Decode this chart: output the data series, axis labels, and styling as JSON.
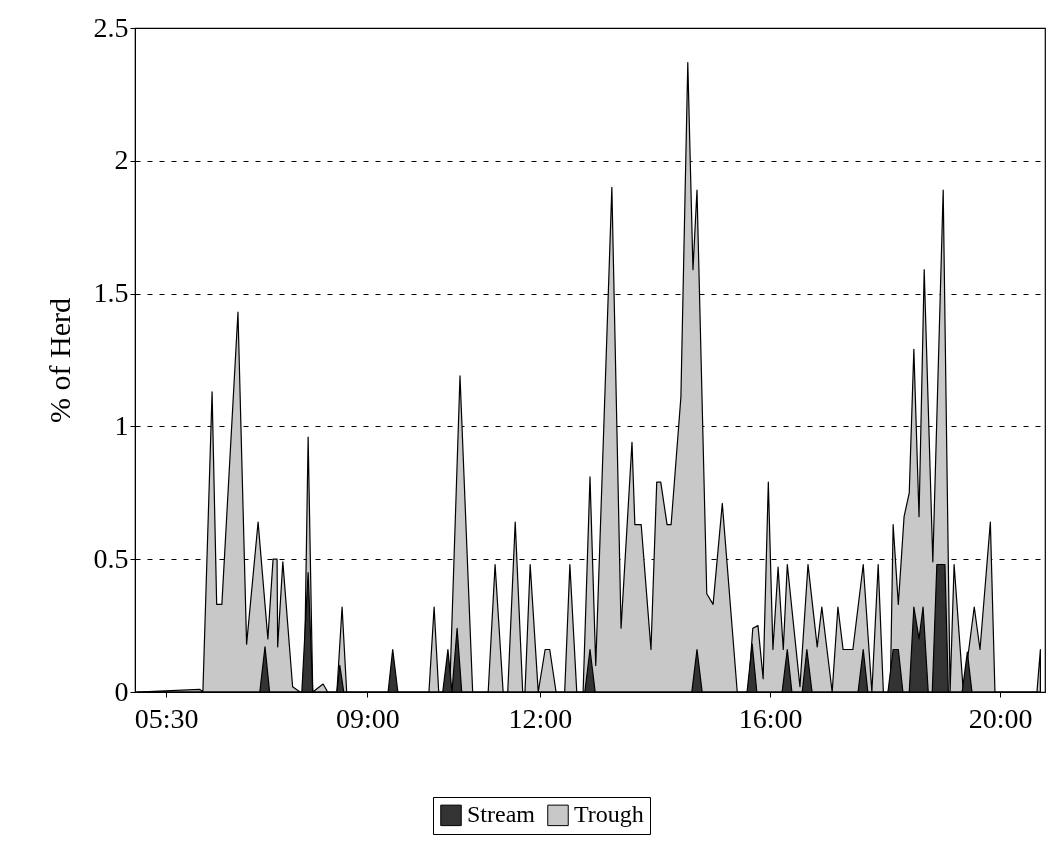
{
  "chart_data": {
    "type": "area",
    "ylabel": "% of Herd",
    "xlim": [
      4.96,
      20.78
    ],
    "xticks": [
      {
        "value": 5.5,
        "label": "05:30"
      },
      {
        "value": 9,
        "label": "09:00"
      },
      {
        "value": 12,
        "label": "12:00"
      },
      {
        "value": 16,
        "label": "16:00"
      },
      {
        "value": 20,
        "label": "20:00"
      }
    ],
    "ylim": [
      0,
      2.5
    ],
    "yticks": [
      0,
      0.5,
      1,
      1.5,
      2,
      2.5
    ],
    "grid": "y",
    "legend": "bottom",
    "series": [
      {
        "name": "Stream",
        "color": "#333333",
        "x": [
          4.99,
          7.13,
          7.22,
          7.3,
          7.86,
          7.97,
          8.05,
          8.47,
          8.52,
          8.59,
          9.36,
          9.44,
          9.53,
          10.31,
          10.4,
          10.47,
          10.56,
          10.64,
          12.78,
          12.87,
          12.96,
          14.64,
          14.73,
          14.82,
          15.6,
          15.69,
          15.77,
          16.21,
          16.3,
          16.38,
          16.56,
          16.64,
          16.73,
          17.53,
          17.62,
          17.7,
          18.05,
          18.14,
          18.23,
          18.31,
          18.42,
          18.5,
          18.59,
          18.66,
          18.75,
          18.82,
          18.9,
          19.04,
          19.1,
          19.34,
          19.43,
          19.51,
          20.7
        ],
        "values": [
          0,
          0,
          0.17,
          0,
          0,
          0.45,
          0,
          0,
          0.1,
          0,
          0,
          0.16,
          0,
          0,
          0.16,
          0,
          0.24,
          0,
          0,
          0.16,
          0,
          0,
          0.16,
          0,
          0,
          0.18,
          0,
          0,
          0.16,
          0,
          0,
          0.16,
          0,
          0,
          0.16,
          0,
          0,
          0.16,
          0.16,
          0,
          0,
          0.32,
          0.2,
          0.32,
          0,
          0,
          0.48,
          0.48,
          0,
          0,
          0.15,
          0,
          0
        ]
      },
      {
        "name": "Trough",
        "color": "#c8c8c8",
        "x": [
          4.99,
          6.09,
          6.14,
          6.3,
          6.38,
          6.47,
          6.75,
          6.9,
          7.1,
          7.27,
          7.36,
          7.43,
          7.44,
          7.53,
          7.7,
          7.83,
          7.9,
          7.97,
          8.05,
          8.23,
          8.31,
          8.47,
          8.56,
          8.64,
          10.07,
          10.16,
          10.24,
          10.43,
          10.61,
          10.83,
          11.1,
          11.22,
          11.36,
          11.44,
          11.57,
          11.7,
          11.74,
          11.83,
          11.97,
          12.09,
          12.17,
          12.28,
          12.43,
          12.52,
          12.64,
          12.75,
          12.87,
          12.97,
          13.25,
          13.41,
          13.6,
          13.65,
          13.76,
          13.93,
          14.03,
          14.1,
          14.21,
          14.28,
          14.45,
          14.57,
          14.66,
          14.73,
          14.9,
          15.01,
          15.17,
          15.43,
          15.62,
          15.7,
          15.79,
          15.88,
          15.97,
          16.05,
          16.14,
          16.23,
          16.3,
          16.52,
          16.66,
          16.82,
          16.9,
          17.08,
          17.18,
          17.27,
          17.44,
          17.62,
          17.77,
          17.88,
          17.97,
          18.09,
          18.14,
          18.23,
          18.33,
          18.42,
          18.5,
          18.59,
          18.68,
          18.83,
          19.01,
          19.13,
          19.2,
          19.36,
          19.55,
          19.65,
          19.83,
          19.91,
          20.64,
          20.7
        ],
        "values": [
          0,
          0.01,
          0,
          1.13,
          0.33,
          0.33,
          1.43,
          0.18,
          0.64,
          0.2,
          0.5,
          0.5,
          0.17,
          0.49,
          0.02,
          0,
          0,
          0.96,
          0,
          0.03,
          0,
          0,
          0.32,
          0,
          0,
          0.32,
          0,
          0,
          1.19,
          0,
          0,
          0.48,
          0,
          0,
          0.64,
          0,
          0,
          0.48,
          0,
          0.16,
          0.16,
          0,
          0,
          0.48,
          0,
          0,
          0.81,
          0.1,
          1.9,
          0.24,
          0.94,
          0.63,
          0.63,
          0.16,
          0.79,
          0.79,
          0.63,
          0.63,
          1.11,
          2.37,
          1.59,
          1.89,
          0.37,
          0.33,
          0.71,
          0,
          0,
          0.24,
          0.25,
          0.05,
          0.79,
          0.16,
          0.47,
          0.16,
          0.48,
          0.02,
          0.48,
          0.17,
          0.32,
          0,
          0.32,
          0.16,
          0.16,
          0.48,
          0,
          0.48,
          0,
          0,
          0.63,
          0.33,
          0.66,
          0.75,
          1.29,
          0.66,
          1.59,
          0.49,
          1.89,
          0,
          0.48,
          0,
          0.32,
          0.16,
          0.64,
          0,
          0,
          0.16
        ]
      }
    ]
  }
}
